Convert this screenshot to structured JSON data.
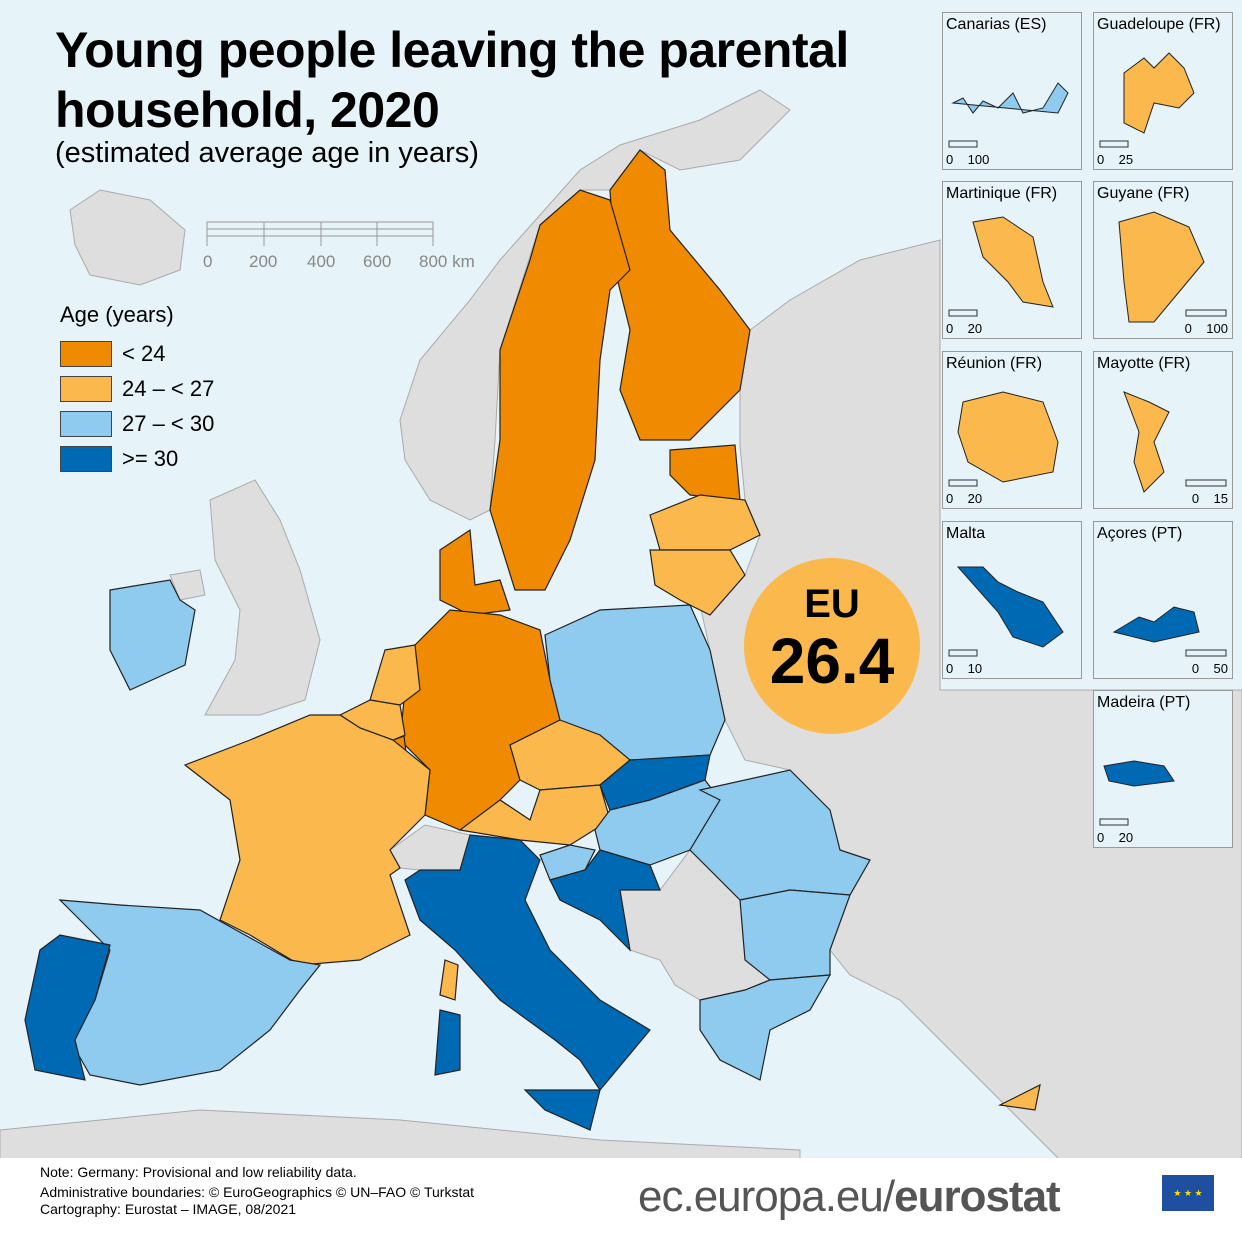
{
  "title": "Young people leaving the parental household, 2020",
  "subtitle": "(estimated average age in years)",
  "scale_bar": {
    "labels": [
      "0",
      "200",
      "400",
      "600",
      "800 km"
    ]
  },
  "legend": {
    "title": "Age (years)",
    "items": [
      {
        "label": "< 24",
        "color": "#f08a00",
        "class": "c1"
      },
      {
        "label": "24 – < 27",
        "color": "#fbb84d",
        "class": "c2"
      },
      {
        "label": "27 – < 30",
        "color": "#8ecbef",
        "class": "c3"
      },
      {
        "label": ">= 30",
        "color": "#0069b4",
        "class": "c4"
      }
    ]
  },
  "colors": {
    "sea": "#e6f3f8",
    "non_eu_land": "#dedede",
    "border": "#222222"
  },
  "eu": {
    "label": "EU",
    "value": "26.4"
  },
  "countries": [
    {
      "id": "FI",
      "class": "c1"
    },
    {
      "id": "SE",
      "class": "c1"
    },
    {
      "id": "EE",
      "class": "c1"
    },
    {
      "id": "LV",
      "class": "c2"
    },
    {
      "id": "LT",
      "class": "c2"
    },
    {
      "id": "DK",
      "class": "c1"
    },
    {
      "id": "DE",
      "class": "c1"
    },
    {
      "id": "LU",
      "class": "c1"
    },
    {
      "id": "NL",
      "class": "c2"
    },
    {
      "id": "BE",
      "class": "c2"
    },
    {
      "id": "FR",
      "class": "c2"
    },
    {
      "id": "ES",
      "class": "c3"
    },
    {
      "id": "PT",
      "class": "c4"
    },
    {
      "id": "IT",
      "class": "c4"
    },
    {
      "id": "IT-SIC",
      "class": "c4"
    },
    {
      "id": "IT-SAR",
      "class": "c4"
    },
    {
      "id": "FR-COR",
      "class": "c2"
    },
    {
      "id": "PL",
      "class": "c3"
    },
    {
      "id": "CZ",
      "class": "c2"
    },
    {
      "id": "AT",
      "class": "c2"
    },
    {
      "id": "SK",
      "class": "c4"
    },
    {
      "id": "HU",
      "class": "c3"
    },
    {
      "id": "SI",
      "class": "c3"
    },
    {
      "id": "HR",
      "class": "c4"
    },
    {
      "id": "RO",
      "class": "c3"
    },
    {
      "id": "BG",
      "class": "c3"
    },
    {
      "id": "EL",
      "class": "c3"
    },
    {
      "id": "CY",
      "class": "c2"
    },
    {
      "id": "IE",
      "class": "c3"
    }
  ],
  "insets": [
    {
      "title": "Canarias (ES)",
      "scale": [
        "0",
        "100"
      ],
      "class": "c3"
    },
    {
      "title": "Guadeloupe (FR)",
      "scale": [
        "0",
        "25"
      ],
      "class": "c2"
    },
    {
      "title": "Martinique (FR)",
      "scale": [
        "0",
        "20"
      ],
      "class": "c2"
    },
    {
      "title": "Guyane (FR)",
      "scale": [
        "0",
        "100"
      ],
      "class": "c2"
    },
    {
      "title": "Réunion (FR)",
      "scale": [
        "0",
        "20"
      ],
      "class": "c2"
    },
    {
      "title": "Mayotte (FR)",
      "scale": [
        "0",
        "15"
      ],
      "class": "c2"
    },
    {
      "title": "Malta",
      "scale": [
        "0",
        "10"
      ],
      "class": "c4"
    },
    {
      "title": "Açores (PT)",
      "scale": [
        "0",
        "50"
      ],
      "class": "c4"
    },
    {
      "title": "Madeira (PT)",
      "scale": [
        "0",
        "20"
      ],
      "class": "c4"
    }
  ],
  "footer": {
    "note": "Note: Germany: Provisional and low reliability data.",
    "boundaries": "Administrative boundaries: © EuroGeographics © UN–FAO © Turkstat",
    "cartography": "Cartography: Eurostat – IMAGE, 08/2021",
    "brand_prefix": "ec.europa.eu/",
    "brand_bold": "eurostat"
  }
}
